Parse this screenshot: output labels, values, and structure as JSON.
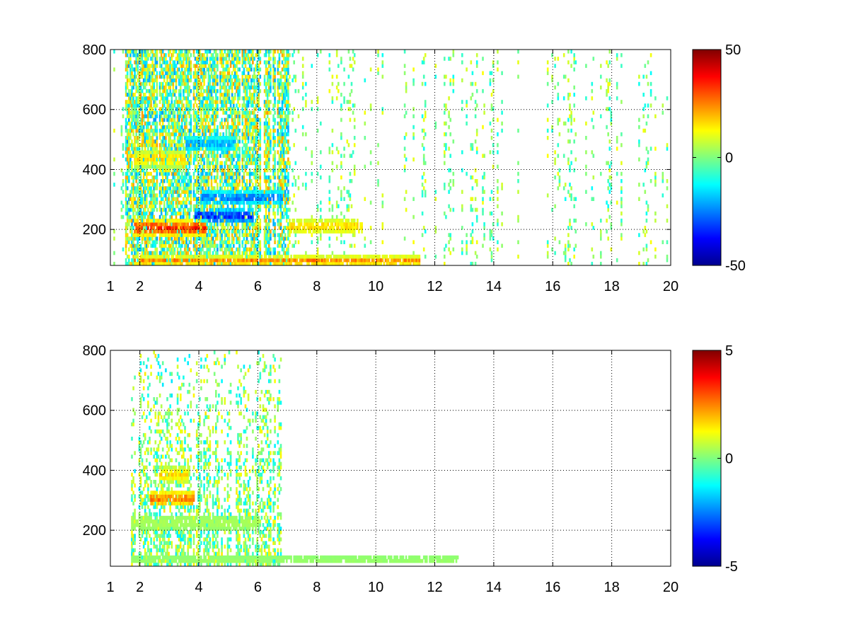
{
  "chart_data": [
    {
      "type": "heatmap",
      "title": "",
      "xlabel": "",
      "ylabel": "",
      "xlim": [
        1,
        20
      ],
      "ylim": [
        80,
        800
      ],
      "x_ticks": [
        1,
        2,
        4,
        6,
        8,
        10,
        12,
        14,
        16,
        18,
        20
      ],
      "y_ticks": [
        200,
        400,
        600,
        800
      ],
      "grid": "dotted",
      "colormap": "jet",
      "clim": [
        -50,
        50
      ],
      "colorbar_ticks": [
        50,
        0,
        -50
      ],
      "colorbar_position": "right",
      "structure": {
        "columns_with_data_x_range": [
          1.1,
          20
        ],
        "dense_region_x_range": [
          1.5,
          7
        ],
        "strong_bands": [
          {
            "x_range": [
              1.8,
              4.2
            ],
            "y": 200,
            "value": 40
          },
          {
            "x_range": [
              3.8,
              5.8
            ],
            "y": 240,
            "value": -40
          },
          {
            "x_range": [
              1.8,
              3.5
            ],
            "y": 430,
            "value": 20
          },
          {
            "x_range": [
              3.5,
              5.2
            ],
            "y": 480,
            "value": -25
          },
          {
            "x_range": [
              4.0,
              6.8
            ],
            "y": 300,
            "value": -30
          },
          {
            "x_range": [
              1.8,
              11.5
            ],
            "y": 90,
            "value": 30
          },
          {
            "x_range": [
              7.0,
              9.5
            ],
            "y": 205,
            "value": 20
          }
        ]
      }
    },
    {
      "type": "heatmap",
      "title": "",
      "xlabel": "",
      "ylabel": "",
      "xlim": [
        1,
        20
      ],
      "ylim": [
        80,
        800
      ],
      "x_ticks": [
        1,
        2,
        4,
        6,
        8,
        10,
        12,
        14,
        16,
        18,
        20
      ],
      "y_ticks": [
        200,
        400,
        600,
        800
      ],
      "grid": "dotted",
      "colormap": "jet",
      "clim": [
        -5,
        5
      ],
      "colorbar_ticks": [
        5,
        0,
        -5
      ],
      "colorbar_position": "right",
      "structure": {
        "columns_with_data_x_range": [
          1.6,
          13
        ],
        "dense_region_x_range": [
          1.7,
          6.9
        ],
        "strong_bands": [
          {
            "x_range": [
              2.3,
              3.8
            ],
            "y": 300,
            "value": 3
          },
          {
            "x_range": [
              2.6,
              3.6
            ],
            "y": 380,
            "value": 2
          },
          {
            "x_range": [
              1.7,
              6.0
            ],
            "y": 220,
            "value": 0.5
          },
          {
            "x_range": [
              1.7,
              12.8
            ],
            "y": 95,
            "value": 0.3
          }
        ]
      }
    }
  ]
}
